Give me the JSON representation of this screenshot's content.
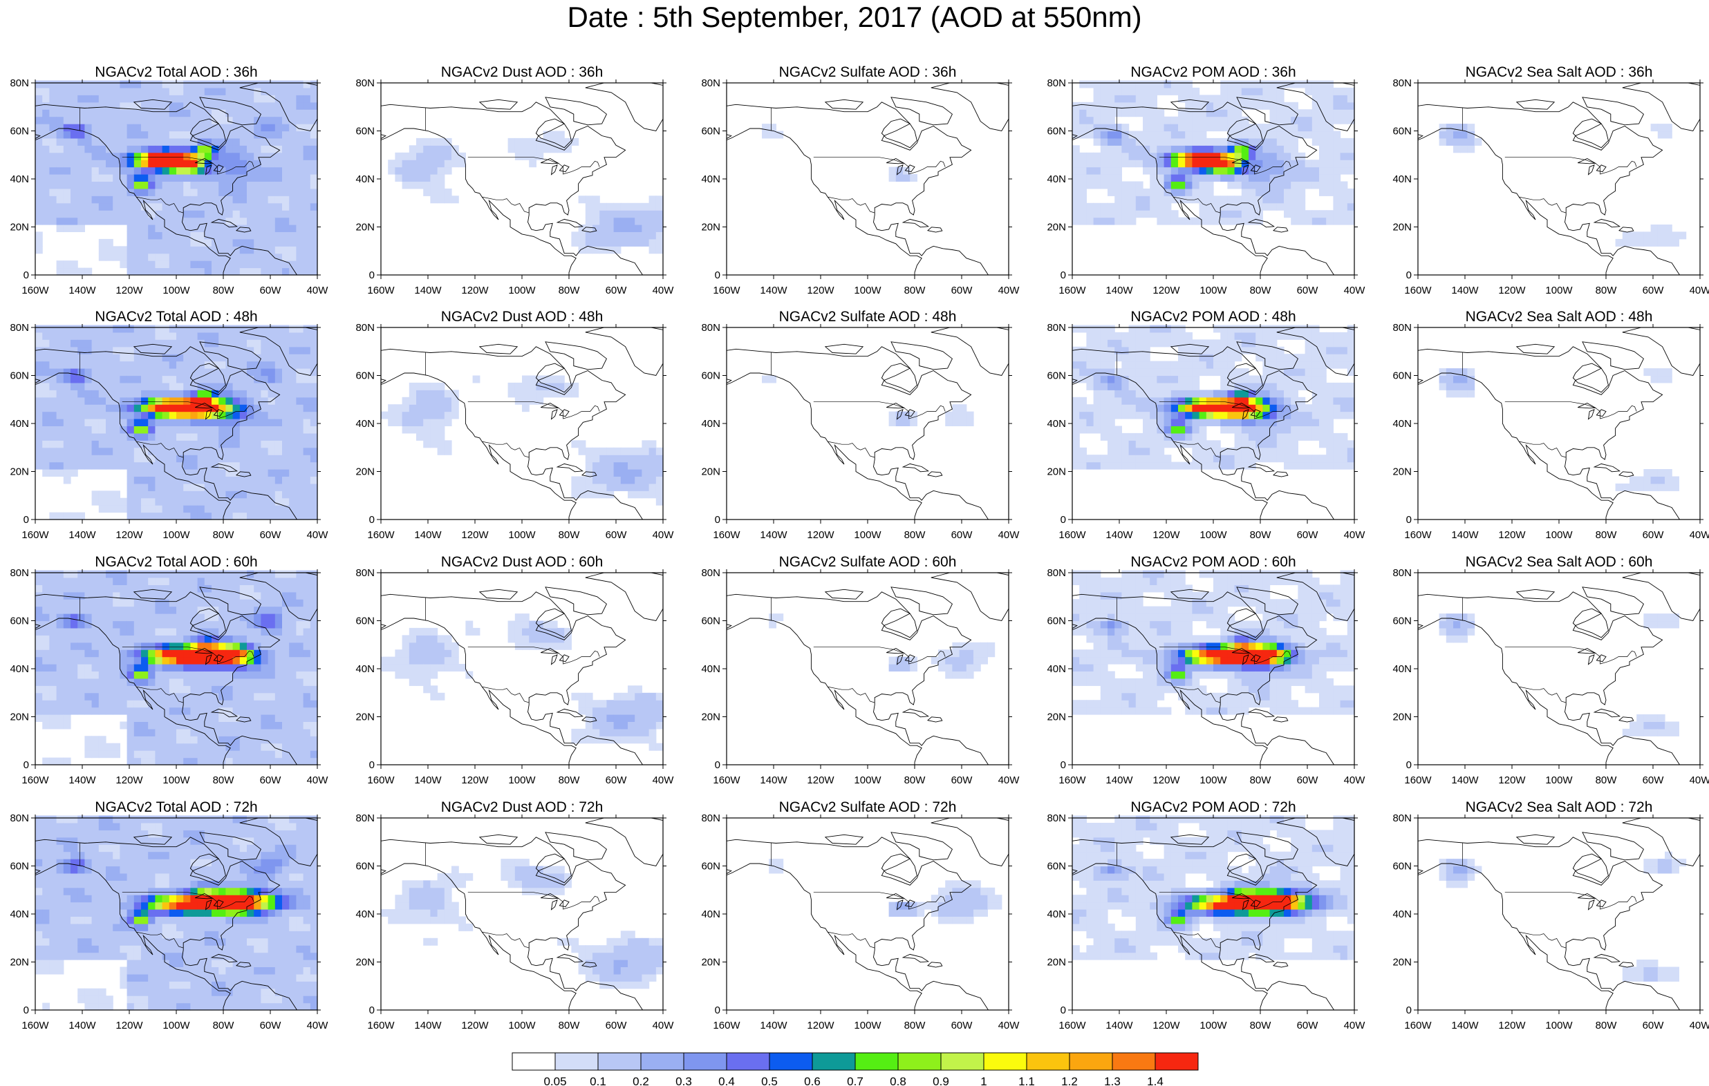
{
  "title": "Date : 5th September, 2017 (AOD at 550nm)",
  "chart_data": {
    "type": "heatmap",
    "title": "Date : 5th September, 2017 (AOD at 550nm)",
    "rows": [
      "36h",
      "48h",
      "60h",
      "72h"
    ],
    "columns": [
      "Total",
      "Dust",
      "Sulfate",
      "POM",
      "Sea Salt"
    ],
    "panels": [
      {
        "title": "NGACv2 Total AOD : 36h",
        "species": "Total",
        "lead": "36h"
      },
      {
        "title": "NGACv2 Dust AOD : 36h",
        "species": "Dust",
        "lead": "36h"
      },
      {
        "title": "NGACv2 Sulfate AOD : 36h",
        "species": "Sulfate",
        "lead": "36h"
      },
      {
        "title": "NGACv2 POM AOD : 36h",
        "species": "POM",
        "lead": "36h"
      },
      {
        "title": "NGACv2 Sea Salt AOD : 36h",
        "species": "Sea Salt",
        "lead": "36h"
      },
      {
        "title": "NGACv2 Total AOD : 48h",
        "species": "Total",
        "lead": "48h"
      },
      {
        "title": "NGACv2 Dust AOD : 48h",
        "species": "Dust",
        "lead": "48h"
      },
      {
        "title": "NGACv2 Sulfate AOD : 48h",
        "species": "Sulfate",
        "lead": "48h"
      },
      {
        "title": "NGACv2 POM AOD : 48h",
        "species": "POM",
        "lead": "48h"
      },
      {
        "title": "NGACv2 Sea Salt AOD : 48h",
        "species": "Sea Salt",
        "lead": "48h"
      },
      {
        "title": "NGACv2 Total AOD : 60h",
        "species": "Total",
        "lead": "60h"
      },
      {
        "title": "NGACv2 Dust AOD : 60h",
        "species": "Dust",
        "lead": "60h"
      },
      {
        "title": "NGACv2 Sulfate AOD : 60h",
        "species": "Sulfate",
        "lead": "60h"
      },
      {
        "title": "NGACv2 POM AOD : 60h",
        "species": "POM",
        "lead": "60h"
      },
      {
        "title": "NGACv2 Sea Salt AOD : 60h",
        "species": "Sea Salt",
        "lead": "60h"
      },
      {
        "title": "NGACv2 Total AOD : 72h",
        "species": "Total",
        "lead": "72h"
      },
      {
        "title": "NGACv2 Dust AOD : 72h",
        "species": "Dust",
        "lead": "72h"
      },
      {
        "title": "NGACv2 Sulfate AOD : 72h",
        "species": "Sulfate",
        "lead": "72h"
      },
      {
        "title": "NGACv2 POM AOD : 72h",
        "species": "POM",
        "lead": "72h"
      },
      {
        "title": "NGACv2 Sea Salt  AOD : 72h",
        "species": "Sea Salt",
        "lead": "72h"
      }
    ],
    "x_ticks": [
      "160W",
      "140W",
      "120W",
      "100W",
      "80W",
      "60W",
      "40W"
    ],
    "y_ticks": [
      "80N",
      "60N",
      "40N",
      "20N",
      "0"
    ],
    "xlim": [
      -160,
      -40
    ],
    "ylim": [
      0,
      80
    ],
    "colorbar": {
      "levels": [
        "0.05",
        "0.1",
        "0.2",
        "0.3",
        "0.4",
        "0.5",
        "0.6",
        "0.7",
        "0.8",
        "0.9",
        "1",
        "1.1",
        "1.2",
        "1.3",
        "1.4"
      ],
      "colors": [
        "#ffffff",
        "#d3ddf8",
        "#b8c7f5",
        "#9aaff2",
        "#7f96ef",
        "#6a6ff0",
        "#0c5cf0",
        "#0e9a98",
        "#55ee13",
        "#8ef01b",
        "#c2f34a",
        "#fbfb0d",
        "#fbc40e",
        "#fba60f",
        "#f97912",
        "#f62710"
      ]
    },
    "colors": {
      "ocean_background": "#ccd6f6",
      "land_line": "#000000",
      "smoke_core": "#f62710"
    }
  }
}
